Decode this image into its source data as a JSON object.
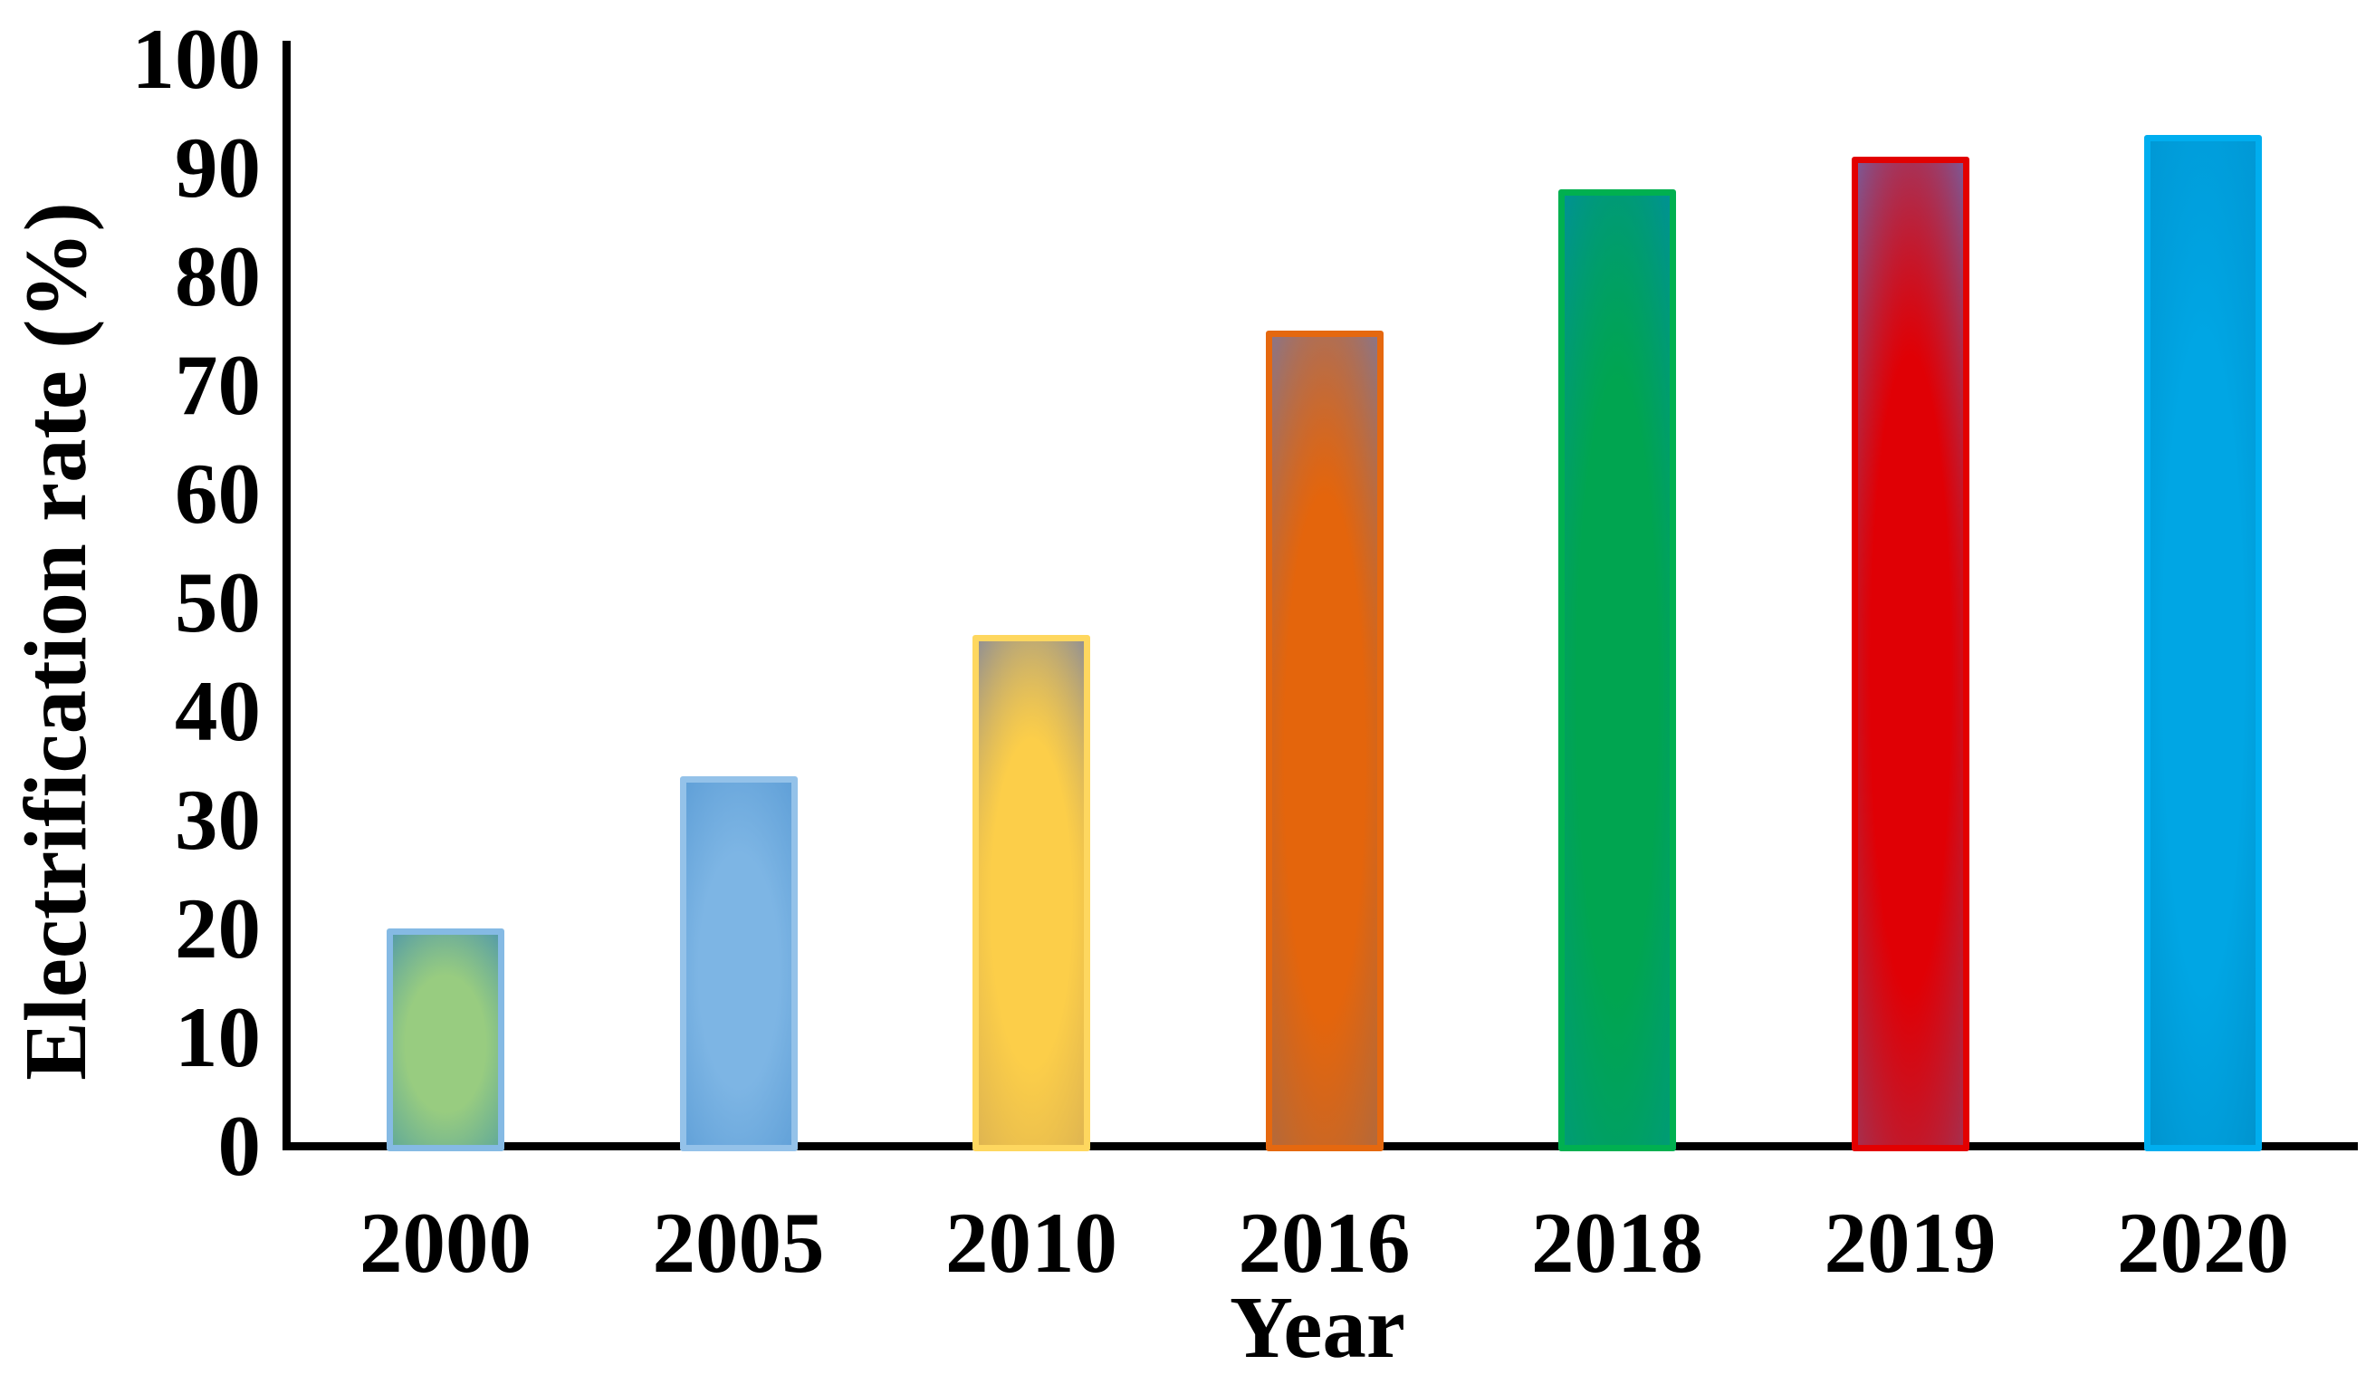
{
  "figure": {
    "background_color": "#ffffff",
    "axis_color": "#000000",
    "text_color": "#000000"
  },
  "chart_data": {
    "type": "bar",
    "title": "",
    "xlabel": "Year",
    "ylabel": "Electrification rate (%)",
    "categories": [
      "2000",
      "2005",
      "2010",
      "2016",
      "2018",
      "2019",
      "2020"
    ],
    "values": [
      20,
      34,
      47,
      75,
      88,
      91,
      93
    ],
    "ylim": [
      0,
      100
    ],
    "yticks": [
      0,
      10,
      20,
      30,
      40,
      50,
      60,
      70,
      80,
      90,
      100
    ],
    "grid": false,
    "legend_position": "none",
    "bar_styles": [
      {
        "category": "2000",
        "border": "#85bae4",
        "fill_center": "#98cc80",
        "fill_top": "#4d96ac",
        "fill_bottom": "#57a39c"
      },
      {
        "category": "2005",
        "border": "#94c2e9",
        "fill_center": "#7db5e4",
        "fill_top": "#5c9dd6",
        "fill_bottom": "#5c9dd6"
      },
      {
        "category": "2010",
        "border": "#fed75f",
        "fill_center": "#fcce49",
        "fill_top": "#84889c",
        "fill_bottom": "#d8af52"
      },
      {
        "category": "2016",
        "border": "#e5680f",
        "fill_center": "#e4650c",
        "fill_top": "#7f7797",
        "fill_bottom": "#a86a45"
      },
      {
        "category": "2018",
        "border": "#00b050",
        "fill_center": "#00a550",
        "fill_top": "#008f9c",
        "fill_bottom": "#00997e"
      },
      {
        "category": "2019",
        "border": "#e30000",
        "fill_center": "#e00005",
        "fill_top": "#6f64a8",
        "fill_bottom": "#99395e"
      },
      {
        "category": "2020",
        "border": "#00aeef",
        "fill_center": "#00a6e4",
        "fill_top": "#0096d3",
        "fill_bottom": "#008fc9"
      }
    ]
  }
}
